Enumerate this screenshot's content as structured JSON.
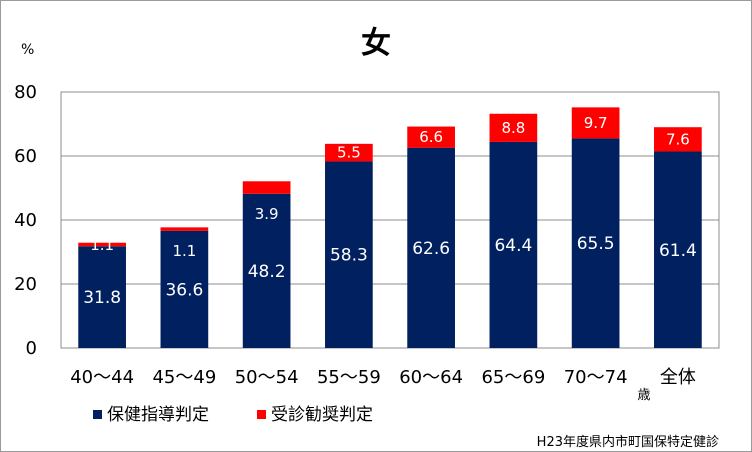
{
  "chart_data": {
    "type": "bar",
    "stacked": true,
    "title": "女",
    "ylabel": "%",
    "x_unit": "歳",
    "ylim": [
      0,
      80
    ],
    "yticks": [
      0,
      20,
      40,
      60,
      80
    ],
    "grid": true,
    "legend_position": "bottom-left",
    "categories": [
      "40～44",
      "45～49",
      "50～54",
      "55～59",
      "60～64",
      "65～69",
      "70～74",
      "全体"
    ],
    "series": [
      {
        "name": "保健指導判定",
        "color": "#002060",
        "values": [
          31.8,
          36.6,
          48.2,
          58.3,
          62.6,
          64.4,
          65.5,
          61.4
        ]
      },
      {
        "name": "受診勧奨判定",
        "color": "#ff0000",
        "values": [
          1.1,
          1.1,
          3.9,
          5.5,
          6.6,
          8.8,
          9.7,
          7.6
        ]
      }
    ],
    "source": "H23年度県内市町国保特定健診"
  }
}
